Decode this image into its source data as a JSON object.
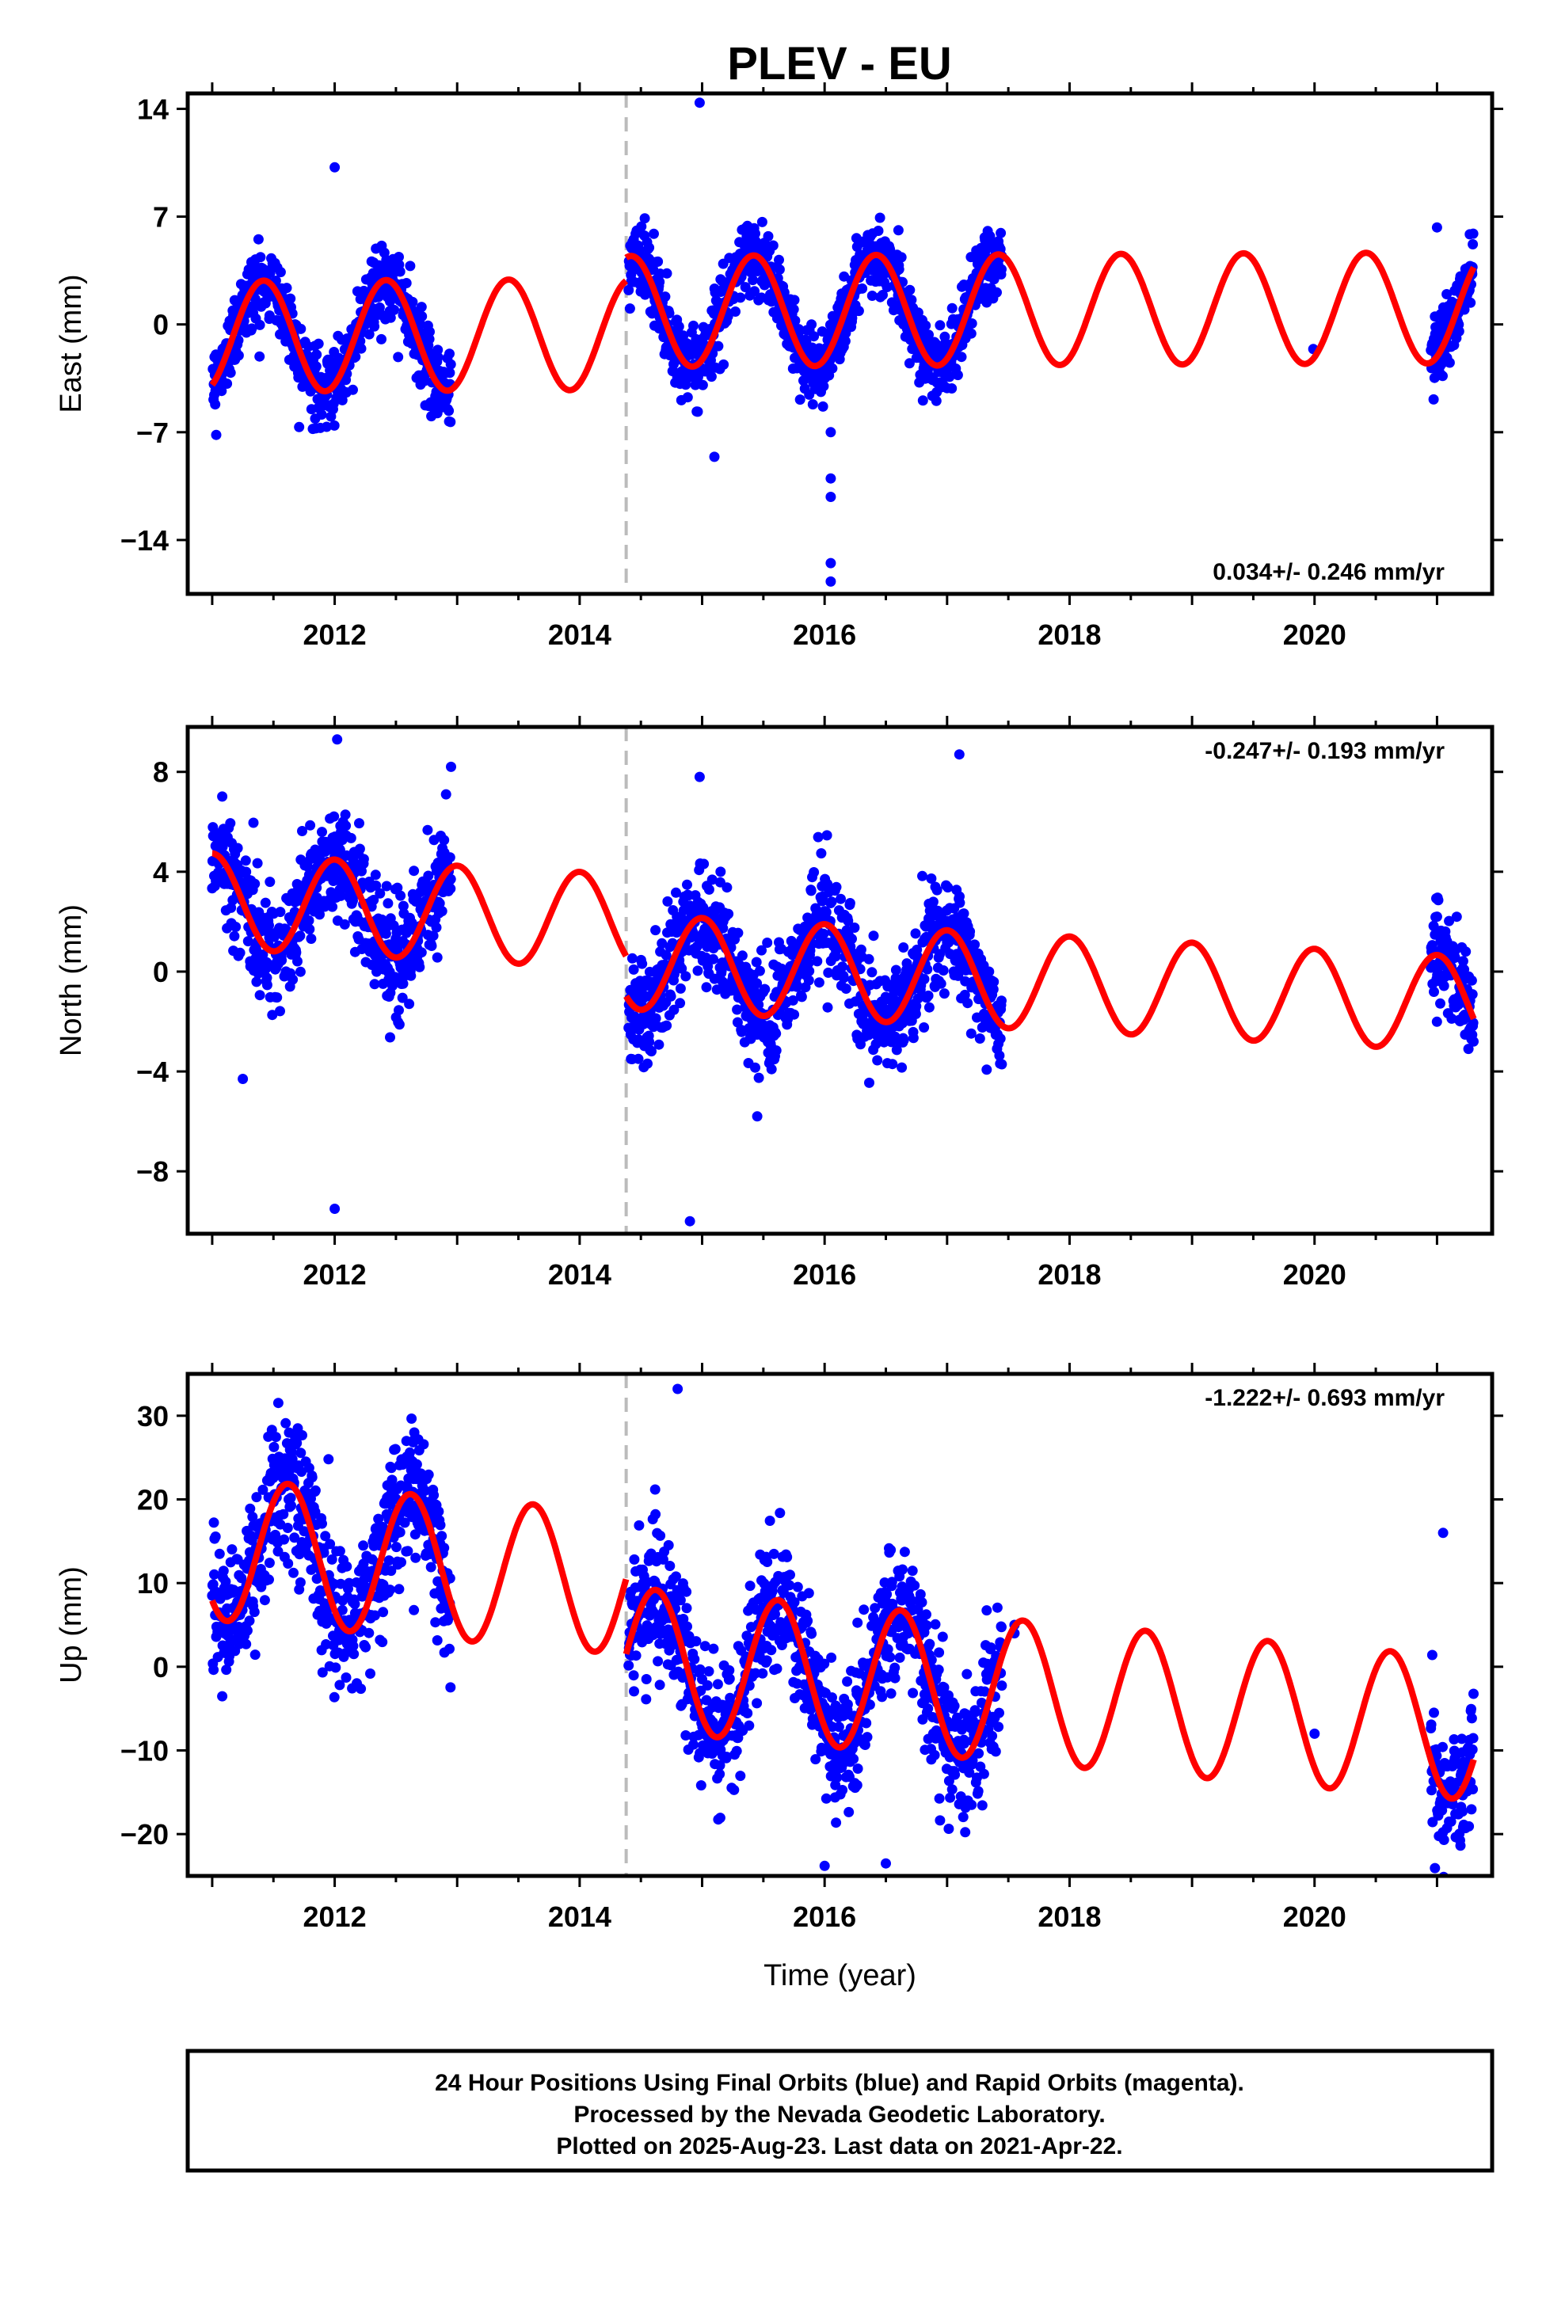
{
  "title": "PLEV - EU",
  "footer": {
    "lines": [
      "24 Hour Positions Using Final Orbits (blue) and Rapid Orbits (magenta).",
      "Processed by the Nevada Geodetic Laboratory.",
      "Plotted on 2025-Aug-23. Last data on 2021-Apr-22."
    ]
  },
  "colors": {
    "data": "#0000ff",
    "model": "#ff0000",
    "break_line": "#bbbbbb",
    "frame": "#000000"
  },
  "chart_data": [
    {
      "type": "scatter",
      "component": "East",
      "ylabel": "East (mm)",
      "xlim": [
        2010.8,
        2021.45
      ],
      "ylim": [
        -17.5,
        15
      ],
      "yticks": [
        14,
        7,
        0,
        -7,
        -14
      ],
      "yticks_labels": [
        "14",
        "7",
        "0",
        "−7",
        "−14"
      ],
      "xticks": [
        2012,
        2014,
        2016,
        2018,
        2020
      ],
      "xticks_labels": [
        "2012",
        "2014",
        "2016",
        "2018",
        "2020"
      ],
      "xlabel": "",
      "rate_label": "0.034+/- 0.246 mm/yr",
      "rate_position": "bottom-right",
      "break_epoch": 2014.38,
      "data_spans": [
        [
          2011.0,
          2012.95
        ],
        [
          2014.4,
          2017.45
        ],
        [
          2020.95,
          2021.3
        ]
      ],
      "model": {
        "mean_before": -0.6,
        "mean_after": 0.9,
        "amplitude": 3.6,
        "peak_phase": 0.42,
        "trend_mm_per_yr": 0.034,
        "epoch_start": 2011.0,
        "epoch_end": 2021.3
      },
      "noise_sd": 1.2,
      "outliers": [
        [
          2012.0,
          10.2
        ],
        [
          2014.98,
          14.4
        ],
        [
          2016.05,
          -10.0
        ],
        [
          2016.05,
          -15.5
        ],
        [
          2016.05,
          -16.7
        ],
        [
          2016.05,
          -11.2
        ],
        [
          2015.1,
          -8.6
        ],
        [
          2016.05,
          -7.0
        ],
        [
          2021.0,
          6.3
        ],
        [
          2019.99,
          -1.6
        ]
      ]
    },
    {
      "type": "scatter",
      "component": "North",
      "ylabel": "North (mm)",
      "xlim": [
        2010.8,
        2021.45
      ],
      "ylim": [
        -10.5,
        9.8
      ],
      "yticks": [
        8,
        4,
        0,
        -4,
        -8
      ],
      "yticks_labels": [
        "8",
        "4",
        "0",
        "−4",
        "−8"
      ],
      "xticks": [
        2012,
        2014,
        2016,
        2018,
        2020
      ],
      "xticks_labels": [
        "2012",
        "2014",
        "2016",
        "2018",
        "2020"
      ],
      "xlabel": "",
      "rate_label": "-0.247+/- 0.193 mm/yr",
      "rate_position": "top-right",
      "break_epoch": 2014.38,
      "data_spans": [
        [
          2011.0,
          2012.95
        ],
        [
          2014.4,
          2017.45
        ],
        [
          2020.95,
          2021.3
        ]
      ],
      "model": {
        "mean_before": 1.6,
        "mean_after": 0.0,
        "amplitude": 1.9,
        "peak_phase": 0.0,
        "trend_mm_per_yr": -0.247,
        "epoch_start": 2011.0,
        "epoch_end": 2021.3
      },
      "noise_sd": 1.1,
      "outliers": [
        [
          2012.0,
          -9.5
        ],
        [
          2012.02,
          9.3
        ],
        [
          2014.9,
          -10.0
        ],
        [
          2014.98,
          7.8
        ],
        [
          2017.1,
          8.7
        ],
        [
          2012.95,
          8.2
        ],
        [
          2011.25,
          -4.3
        ],
        [
          2015.45,
          -5.8
        ],
        [
          2021.0,
          2.2
        ]
      ]
    },
    {
      "type": "scatter",
      "component": "Up",
      "ylabel": "Up (mm)",
      "xlim": [
        2010.8,
        2021.45
      ],
      "ylim": [
        -25,
        35
      ],
      "yticks": [
        30,
        20,
        10,
        0,
        -10,
        -20
      ],
      "yticks_labels": [
        "30",
        "20",
        "10",
        "0",
        "−10",
        "−20"
      ],
      "xticks": [
        2012,
        2014,
        2016,
        2018,
        2020
      ],
      "xticks_labels": [
        "2012",
        "2014",
        "2016",
        "2018",
        "2020"
      ],
      "xlabel": "Time (year)",
      "rate_label": "-1.222+/- 0.693 mm/yr",
      "rate_position": "top-right",
      "break_epoch": 2014.38,
      "data_spans": [
        [
          2011.0,
          2012.95
        ],
        [
          2014.4,
          2017.45
        ],
        [
          2020.95,
          2021.3
        ]
      ],
      "model": {
        "mean_before": 8.0,
        "mean_after": -1.0,
        "amplitude": 8.5,
        "peak_phase": 0.62,
        "trend_mm_per_yr": -1.222,
        "epoch_start": 2011.0,
        "epoch_end": 2021.3
      },
      "noise_sd": 4.0,
      "outliers": [
        [
          2014.8,
          33.2
        ],
        [
          2012.65,
          28.0
        ],
        [
          2011.95,
          24.8
        ],
        [
          2021.05,
          16.0
        ],
        [
          2020.0,
          -8.0
        ],
        [
          2016.0,
          -23.8
        ],
        [
          2016.5,
          -23.5
        ],
        [
          2017.55,
          5.0
        ],
        [
          2017.55,
          4.0
        ]
      ]
    }
  ]
}
